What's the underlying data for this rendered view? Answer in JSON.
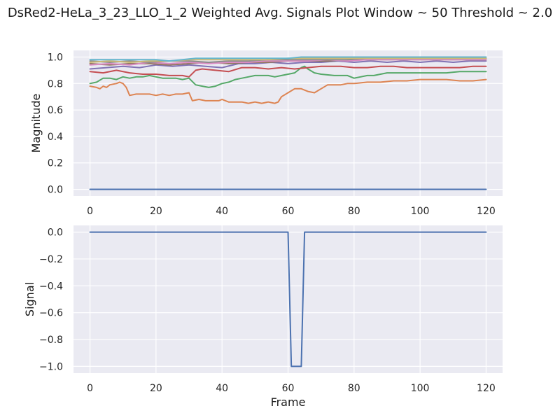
{
  "title": "DsRed2-HeLa_3_23_LLO_1_2 Weighted Avg. Signals Plot Window ~ 50 Threshold ~ 2.0",
  "chart_data": [
    {
      "type": "line",
      "title": "",
      "xlabel": "",
      "ylabel": "Magnitude",
      "xlim": [
        -5,
        125
      ],
      "ylim": [
        -0.05,
        1.05
      ],
      "xticks": [
        0,
        20,
        40,
        60,
        80,
        100,
        120
      ],
      "xtick_labels": [
        "0",
        "20",
        "40",
        "60",
        "80",
        "100",
        "120"
      ],
      "yticks": [
        0.0,
        0.2,
        0.4,
        0.6,
        0.8,
        1.0
      ],
      "ytick_labels": [
        "0.0",
        "0.2",
        "0.4",
        "0.6",
        "0.8",
        "1.0"
      ],
      "grid": true,
      "background": "#eaeaf2",
      "series": [
        {
          "color": "#4c72b0",
          "x": [
            0,
            120
          ],
          "values": [
            0.0,
            0.0
          ]
        },
        {
          "color": "#dd8452",
          "x": [
            0,
            2,
            3,
            4,
            5,
            6,
            8,
            9,
            10,
            11,
            12,
            14,
            16,
            18,
            20,
            22,
            24,
            26,
            28,
            30,
            31,
            33,
            35,
            37,
            39,
            40,
            42,
            44,
            46,
            48,
            50,
            52,
            54,
            56,
            57,
            58,
            60,
            62,
            64,
            66,
            68,
            70,
            72,
            74,
            76,
            78,
            80,
            84,
            88,
            92,
            96,
            100,
            104,
            108,
            112,
            116,
            120
          ],
          "values": [
            0.78,
            0.77,
            0.76,
            0.78,
            0.77,
            0.79,
            0.8,
            0.81,
            0.8,
            0.77,
            0.71,
            0.72,
            0.72,
            0.72,
            0.71,
            0.72,
            0.71,
            0.72,
            0.72,
            0.73,
            0.67,
            0.68,
            0.67,
            0.67,
            0.67,
            0.68,
            0.66,
            0.66,
            0.66,
            0.65,
            0.66,
            0.65,
            0.66,
            0.65,
            0.66,
            0.7,
            0.73,
            0.76,
            0.76,
            0.74,
            0.73,
            0.76,
            0.79,
            0.79,
            0.79,
            0.8,
            0.8,
            0.81,
            0.81,
            0.82,
            0.82,
            0.83,
            0.83,
            0.83,
            0.82,
            0.82,
            0.83
          ]
        },
        {
          "color": "#55a868",
          "x": [
            0,
            2,
            4,
            6,
            8,
            10,
            12,
            14,
            16,
            18,
            20,
            22,
            24,
            26,
            28,
            30,
            32,
            34,
            36,
            38,
            40,
            42,
            44,
            46,
            48,
            50,
            52,
            54,
            56,
            58,
            60,
            62,
            64,
            65,
            66,
            68,
            70,
            74,
            78,
            80,
            82,
            84,
            86,
            88,
            90,
            92,
            96,
            100,
            104,
            108,
            112,
            116,
            120
          ],
          "values": [
            0.8,
            0.81,
            0.84,
            0.84,
            0.83,
            0.85,
            0.84,
            0.85,
            0.85,
            0.86,
            0.85,
            0.84,
            0.84,
            0.84,
            0.83,
            0.84,
            0.79,
            0.78,
            0.77,
            0.78,
            0.8,
            0.81,
            0.83,
            0.84,
            0.85,
            0.86,
            0.86,
            0.86,
            0.85,
            0.86,
            0.87,
            0.88,
            0.92,
            0.93,
            0.91,
            0.88,
            0.87,
            0.86,
            0.86,
            0.84,
            0.85,
            0.86,
            0.86,
            0.87,
            0.88,
            0.88,
            0.88,
            0.88,
            0.88,
            0.88,
            0.89,
            0.89,
            0.89
          ]
        },
        {
          "color": "#c44e52",
          "x": [
            0,
            4,
            8,
            12,
            16,
            20,
            24,
            28,
            30,
            32,
            34,
            38,
            42,
            46,
            50,
            54,
            58,
            62,
            66,
            70,
            76,
            80,
            84,
            88,
            92,
            96,
            100,
            104,
            108,
            112,
            116,
            120
          ],
          "values": [
            0.89,
            0.88,
            0.9,
            0.88,
            0.87,
            0.87,
            0.86,
            0.86,
            0.85,
            0.9,
            0.91,
            0.9,
            0.89,
            0.92,
            0.92,
            0.91,
            0.92,
            0.91,
            0.92,
            0.93,
            0.93,
            0.92,
            0.92,
            0.93,
            0.93,
            0.92,
            0.92,
            0.92,
            0.92,
            0.92,
            0.93,
            0.93
          ]
        },
        {
          "color": "#8172b3",
          "x": [
            0,
            5,
            10,
            15,
            20,
            25,
            30,
            35,
            40,
            45,
            50,
            55,
            60,
            65,
            70,
            75,
            80,
            85,
            90,
            95,
            100,
            105,
            110,
            115,
            120
          ],
          "values": [
            0.91,
            0.92,
            0.93,
            0.92,
            0.94,
            0.93,
            0.94,
            0.93,
            0.92,
            0.95,
            0.95,
            0.96,
            0.95,
            0.96,
            0.96,
            0.97,
            0.96,
            0.97,
            0.96,
            0.97,
            0.96,
            0.97,
            0.96,
            0.97,
            0.97
          ]
        },
        {
          "color": "#937860",
          "x": [
            0,
            6,
            12,
            18,
            24,
            30,
            36,
            42,
            48,
            54,
            60,
            66,
            72,
            78,
            84,
            90,
            96,
            102,
            108,
            114,
            120
          ],
          "values": [
            0.95,
            0.94,
            0.95,
            0.95,
            0.94,
            0.95,
            0.96,
            0.95,
            0.96,
            0.96,
            0.97,
            0.97,
            0.97,
            0.98,
            0.98,
            0.98,
            0.98,
            0.98,
            0.98,
            0.98,
            0.98
          ]
        },
        {
          "color": "#da8bc3",
          "x": [
            0,
            6,
            12,
            18,
            24,
            30,
            36,
            42,
            48,
            54,
            60,
            66,
            72,
            78,
            84,
            90,
            96,
            102,
            108,
            114,
            120
          ],
          "values": [
            0.94,
            0.95,
            0.94,
            0.96,
            0.95,
            0.96,
            0.95,
            0.96,
            0.96,
            0.97,
            0.97,
            0.97,
            0.98,
            0.97,
            0.98,
            0.98,
            0.98,
            0.98,
            0.98,
            0.98,
            0.98
          ]
        },
        {
          "color": "#8c8c8c",
          "x": [
            0,
            6,
            12,
            18,
            24,
            30,
            36,
            42,
            48,
            54,
            60,
            66,
            72,
            78,
            84,
            90,
            96,
            102,
            108,
            114,
            120
          ],
          "values": [
            0.97,
            0.96,
            0.97,
            0.96,
            0.97,
            0.97,
            0.96,
            0.97,
            0.97,
            0.98,
            0.98,
            0.98,
            0.98,
            0.98,
            0.99,
            0.99,
            0.99,
            0.99,
            0.99,
            0.99,
            0.99
          ]
        },
        {
          "color": "#ccb974",
          "x": [
            0,
            6,
            12,
            18,
            24,
            30,
            36,
            42,
            48,
            54,
            60,
            66,
            72,
            78,
            84,
            90,
            96,
            102,
            108,
            114,
            120
          ],
          "values": [
            0.96,
            0.97,
            0.96,
            0.97,
            0.97,
            0.98,
            0.98,
            0.98,
            0.98,
            0.98,
            0.99,
            0.99,
            0.99,
            0.99,
            0.99,
            0.99,
            0.99,
            0.99,
            0.99,
            0.99,
            0.99
          ]
        },
        {
          "color": "#64b5cd",
          "x": [
            0,
            4,
            8,
            12,
            16,
            20,
            24,
            28,
            32,
            36,
            40,
            44,
            48,
            52,
            56,
            60,
            64,
            68,
            72,
            76,
            80,
            84,
            88,
            92,
            96,
            100,
            104,
            108,
            112,
            116,
            120
          ],
          "values": [
            0.98,
            0.98,
            0.98,
            0.98,
            0.98,
            0.98,
            0.97,
            0.98,
            0.99,
            0.99,
            0.99,
            0.99,
            0.99,
            0.99,
            0.99,
            0.99,
            1.0,
            1.0,
            1.0,
            1.0,
            1.0,
            1.0,
            1.0,
            1.0,
            1.0,
            1.0,
            1.0,
            1.0,
            1.0,
            1.0,
            1.0
          ]
        }
      ]
    },
    {
      "type": "line",
      "title": "",
      "xlabel": "Frame",
      "ylabel": "Signal",
      "xlim": [
        -5,
        125
      ],
      "ylim": [
        -1.05,
        0.05
      ],
      "xticks": [
        0,
        20,
        40,
        60,
        80,
        100,
        120
      ],
      "xtick_labels": [
        "0",
        "20",
        "40",
        "60",
        "80",
        "100",
        "120"
      ],
      "yticks": [
        0.0,
        -0.2,
        -0.4,
        -0.6,
        -0.8,
        -1.0
      ],
      "ytick_labels": [
        "0.0",
        "−0.2",
        "−0.4",
        "−0.6",
        "−0.8",
        "−1.0"
      ],
      "grid": true,
      "background": "#eaeaf2",
      "series": [
        {
          "color": "#4c72b0",
          "x": [
            0,
            60,
            61,
            64,
            65,
            120
          ],
          "values": [
            0,
            0,
            -1,
            -1,
            0,
            0
          ]
        }
      ]
    }
  ]
}
